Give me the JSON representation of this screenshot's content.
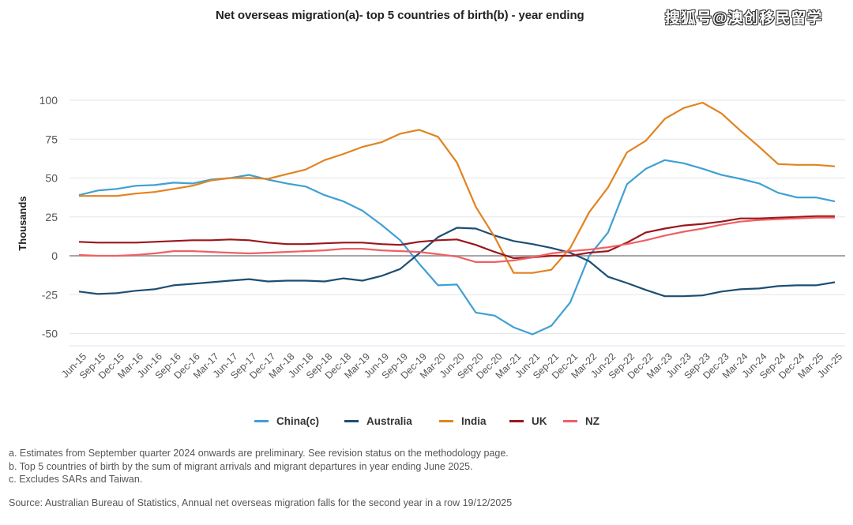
{
  "watermark": "搜狐号@澳创移民留学",
  "footnotes": [
    "a. Estimates from September quarter 2024 onwards are preliminary. See revision status on the methodology page.",
    "b. Top 5 countries of birth by the sum of migrant arrivals and migrant departures in year ending June 2025.",
    "c. Excludes SARs and Taiwan."
  ],
  "source": "Source: Australian Bureau of Statistics, Annual net overseas migration falls for the second year in a row 19/12/2025",
  "chart_data": {
    "type": "line",
    "title": "Net overseas migration(a)- top 5 countries of birth(b) - year ending",
    "xlabel": "",
    "ylabel": "Thousands",
    "ylim": [
      -50,
      100
    ],
    "yticks": [
      100,
      75,
      50,
      25,
      0,
      -25,
      -50
    ],
    "grid": true,
    "legend_position": "bottom",
    "x": [
      "Jun-15",
      "Sep-15",
      "Dec-15",
      "Mar-16",
      "Jun-16",
      "Sep-16",
      "Dec-16",
      "Mar-17",
      "Jun-17",
      "Sep-17",
      "Dec-17",
      "Mar-18",
      "Jun-18",
      "Sep-18",
      "Dec-18",
      "Mar-19",
      "Jun-19",
      "Sep-19",
      "Dec-19",
      "Mar-20",
      "Jun-20",
      "Sep-20",
      "Dec-20",
      "Mar-21",
      "Jun-21",
      "Sep-21",
      "Dec-21",
      "Mar-22",
      "Jun-22",
      "Sep-22",
      "Dec-22",
      "Mar-23",
      "Jun-23",
      "Sep-23",
      "Dec-23",
      "Mar-24",
      "Jun-24",
      "Sep-24",
      "Dec-24",
      "Mar-25",
      "Jun-25"
    ],
    "series": [
      {
        "name": "China(c)",
        "color": "#3fa0d4",
        "values": [
          39,
          42,
          43,
          45,
          45.5,
          47,
          46.5,
          49,
          50,
          52,
          49,
          46.5,
          44.5,
          39,
          35,
          29,
          20,
          10,
          -5,
          -19,
          -18.5,
          -36.5,
          -38.5,
          -46,
          -50.5,
          -45,
          -30,
          0,
          15,
          46,
          56,
          61.5,
          59.5,
          56,
          52,
          49.5,
          46.5,
          40.5,
          37.5,
          37.5,
          35
        ]
      },
      {
        "name": "Australia",
        "color": "#1d4e73",
        "values": [
          -23,
          -24.5,
          -24,
          -22.5,
          -21.5,
          -19,
          -18,
          -17,
          -16,
          -15,
          -16.5,
          -16,
          -16,
          -16.5,
          -14.5,
          -16,
          -13,
          -8.5,
          1.5,
          12,
          18,
          17.5,
          13,
          9.5,
          7.5,
          5,
          2,
          -3.5,
          -13.5,
          -17.5,
          -22,
          -26,
          -26,
          -25.5,
          -23,
          -21.5,
          -21,
          -19.5,
          -19,
          -19,
          -17
        ]
      },
      {
        "name": "India",
        "color": "#e2831e",
        "values": [
          38.5,
          38.5,
          38.5,
          40,
          41,
          43,
          45,
          48.5,
          50,
          50,
          49.5,
          52.5,
          55.5,
          61.5,
          65.5,
          70,
          73,
          78.5,
          81,
          76.5,
          60,
          31.5,
          12,
          -11,
          -11,
          -9,
          5,
          28,
          44,
          66.5,
          74,
          88,
          95,
          98.5,
          91.5,
          80.5,
          70,
          59,
          58.5,
          58.5,
          57.5
        ]
      },
      {
        "name": "UK",
        "color": "#99171c",
        "values": [
          9,
          8.5,
          8.5,
          8.5,
          9,
          9.5,
          10,
          10,
          10.5,
          10,
          8.5,
          7.5,
          7.5,
          8,
          8.5,
          8.5,
          7.5,
          7,
          9,
          10,
          10.5,
          7,
          2.5,
          -1.5,
          -1,
          0,
          0,
          2,
          3,
          8.5,
          15,
          17.5,
          19.5,
          20.5,
          22,
          24,
          24,
          24.5,
          25,
          25.5,
          25.5
        ]
      },
      {
        "name": "NZ",
        "color": "#ef6063",
        "values": [
          0.5,
          0,
          0,
          0.5,
          1.5,
          3,
          3,
          2.5,
          2,
          1.5,
          2,
          2.5,
          3,
          3.5,
          4.5,
          4.5,
          3.5,
          3,
          2.5,
          1,
          -0.5,
          -4,
          -4,
          -3,
          -1,
          1.5,
          3,
          4,
          5.5,
          7.5,
          10,
          13,
          15.5,
          17.5,
          20,
          22,
          23,
          23.5,
          24,
          24.5,
          24.5
        ]
      }
    ]
  }
}
